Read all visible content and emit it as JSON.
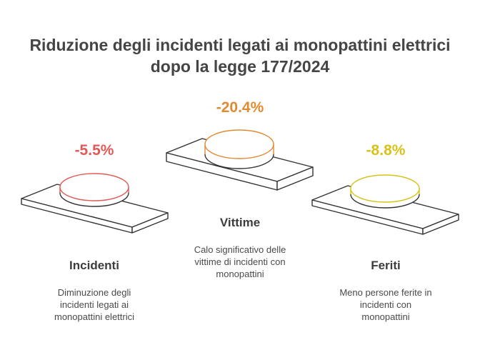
{
  "title": {
    "line1": "Riduzione degli incidenti legati ai monopattini elettrici",
    "line2": "dopo la legge 177/2024"
  },
  "items": [
    {
      "key": "incidenti",
      "percent": "-5.5%",
      "label": "Incidenti",
      "desc_lines": [
        "Diminuzione degli",
        "incidenti legati ai",
        "monopattini elettrici"
      ],
      "color": "#e05a57"
    },
    {
      "key": "vittime",
      "percent": "-20.4%",
      "label": "Vittime",
      "desc_lines": [
        "Calo significativo delle",
        "vittime di incidenti con",
        "monopattini"
      ],
      "color": "#e08a32"
    },
    {
      "key": "feriti",
      "percent": "-8.8%",
      "label": "Feriti",
      "desc_lines": [
        "Meno persone ferite in",
        "incidenti con",
        "monopattini"
      ],
      "color": "#d8c21a"
    }
  ]
}
